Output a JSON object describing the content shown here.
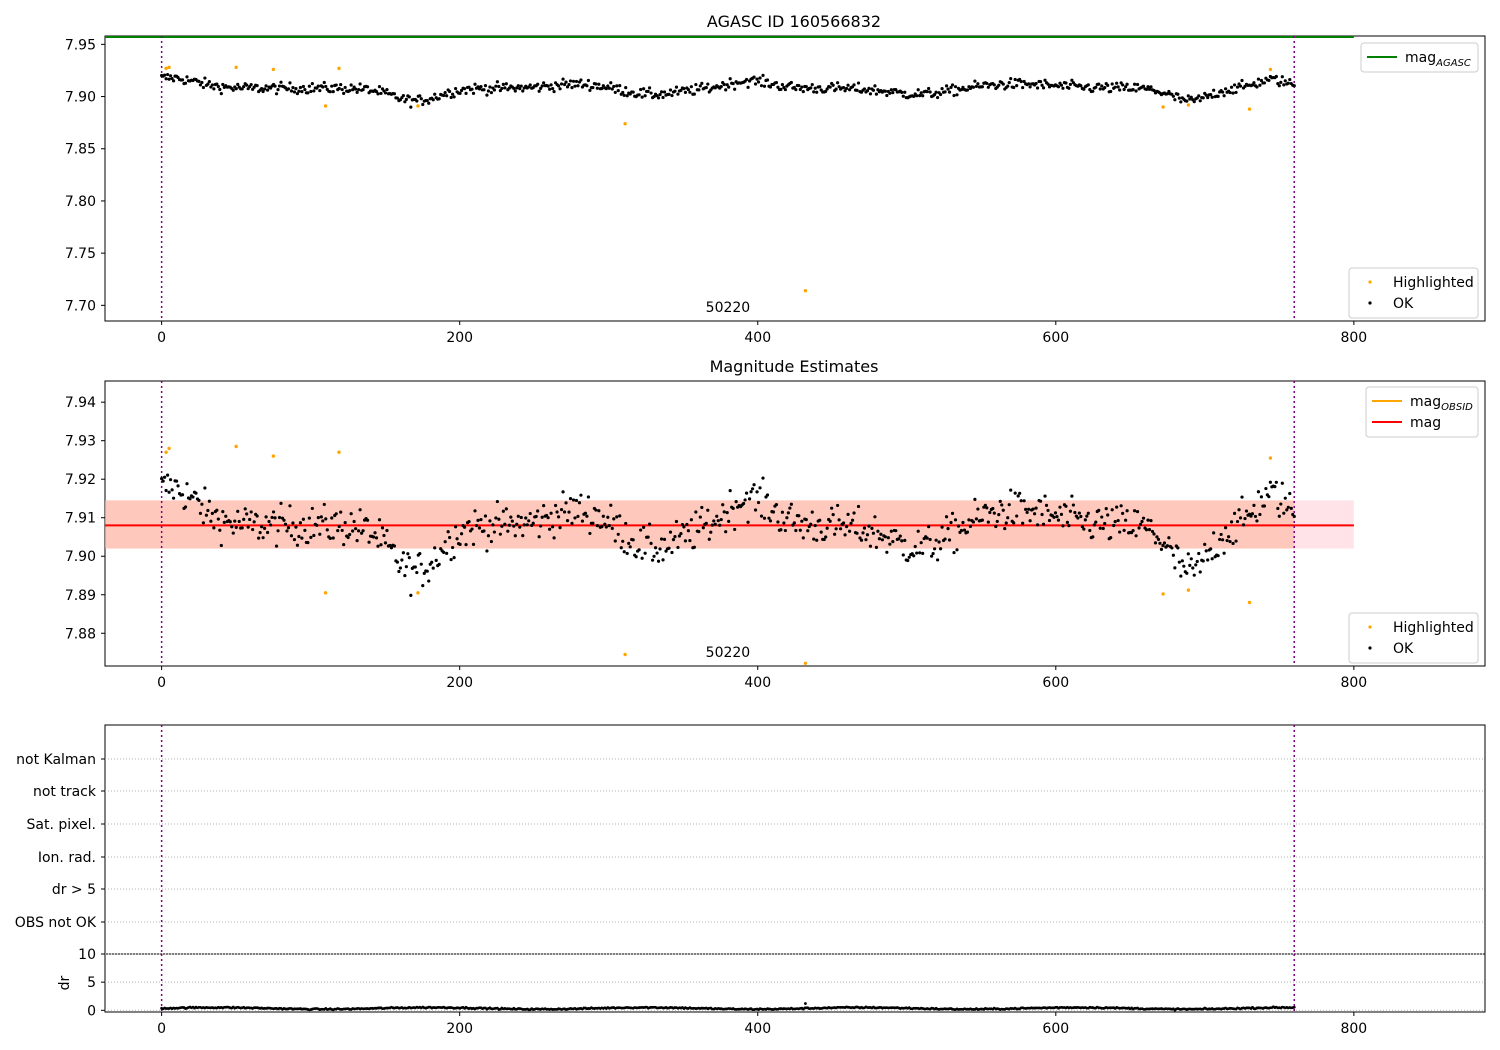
{
  "chart_data": [
    {
      "type": "scatter",
      "title": "AGASC ID 160566832",
      "xlabel": "",
      "ylabel": "",
      "xlim": [
        -38,
        888
      ],
      "ylim": [
        7.685,
        7.958
      ],
      "xticks": [
        0,
        200,
        400,
        600,
        800
      ],
      "yticks": [
        7.7,
        7.75,
        7.8,
        7.85,
        7.9,
        7.95
      ],
      "ytick_labels": [
        "7.70",
        "7.75",
        "7.80",
        "7.85",
        "7.90",
        "7.95"
      ],
      "grid": false,
      "mag_agasc": 7.957,
      "mag_agasc_xrange": [
        -38,
        800
      ],
      "obsid_boundaries": [
        0,
        760
      ],
      "obsid_label": {
        "text": "50220",
        "x": 380
      },
      "ok_series": {
        "name": "OK",
        "color": "#000000",
        "x_range": [
          0,
          760
        ],
        "n": 760,
        "mean": 7.908,
        "noise": 0.0025
      },
      "highlighted": {
        "name": "Highlighted",
        "color": "#ffa500",
        "x": [
          3,
          5,
          50,
          75,
          110,
          119,
          172,
          311,
          432,
          672,
          689,
          730,
          744
        ],
        "y": [
          7.927,
          7.928,
          7.928,
          7.926,
          7.891,
          7.927,
          7.891,
          7.874,
          7.714,
          7.89,
          7.892,
          7.888,
          7.926
        ]
      },
      "legends": [
        {
          "position": "top-right",
          "entries": [
            {
              "label": "mag",
              "subscript": "AGASC",
              "kind": "line",
              "color": "#008000"
            }
          ]
        },
        {
          "position": "bottom-right",
          "entries": [
            {
              "label": "Highlighted",
              "kind": "dot",
              "color": "#ffa500"
            },
            {
              "label": "OK",
              "kind": "dot",
              "color": "#000000"
            }
          ]
        }
      ]
    },
    {
      "type": "scatter",
      "title": "Magnitude Estimates",
      "xlabel": "",
      "ylabel": "",
      "xlim": [
        -38,
        888
      ],
      "ylim": [
        7.8715,
        7.9455
      ],
      "xticks": [
        0,
        200,
        400,
        600,
        800
      ],
      "yticks": [
        7.88,
        7.89,
        7.9,
        7.91,
        7.92,
        7.93,
        7.94
      ],
      "ytick_labels": [
        "7.88",
        "7.89",
        "7.90",
        "7.91",
        "7.92",
        "7.93",
        "7.94"
      ],
      "grid": false,
      "mag": 7.908,
      "mag_band_outer": {
        "y": [
          7.902,
          7.9145
        ],
        "x": [
          -38,
          800
        ],
        "color": "#ffc0cb"
      },
      "mag_band_inner": {
        "y": [
          7.902,
          7.9145
        ],
        "x": [
          -38,
          760
        ],
        "color": "#ffa07a"
      },
      "obsid_boundaries": [
        0,
        760
      ],
      "obsid_label": {
        "text": "50220",
        "x": 380
      },
      "highlighted": {
        "name": "Highlighted",
        "color": "#ffa500",
        "x": [
          3,
          5,
          50,
          75,
          110,
          119,
          172,
          311,
          432,
          672,
          689,
          730,
          744
        ],
        "y": [
          7.927,
          7.928,
          7.9285,
          7.926,
          7.8905,
          7.927,
          7.8905,
          7.8745,
          7.8722,
          7.8902,
          7.8912,
          7.888,
          7.9255
        ]
      },
      "legends": [
        {
          "position": "top-right",
          "entries": [
            {
              "label": "mag",
              "subscript": "OBSID",
              "kind": "line",
              "color": "#ffa500"
            },
            {
              "label": "mag",
              "kind": "line",
              "color": "#ff0000"
            }
          ]
        },
        {
          "position": "bottom-right",
          "entries": [
            {
              "label": "Highlighted",
              "kind": "dot",
              "color": "#ffa500"
            },
            {
              "label": "OK",
              "kind": "dot",
              "color": "#000000"
            }
          ]
        }
      ]
    },
    {
      "type": "table",
      "title": "",
      "xlim": [
        -38,
        888
      ],
      "categories": [
        "not Kalman",
        "not track",
        "Sat. pixel.",
        "Ion. rad.",
        "dr > 5",
        "OBS not OK"
      ],
      "grid": true,
      "obsid_boundaries": [
        0,
        760
      ]
    },
    {
      "type": "scatter",
      "title": "",
      "xlabel": "",
      "ylabel": "dr",
      "xlim": [
        -38,
        888
      ],
      "ylim": [
        -0.3,
        10.0
      ],
      "xticks": [
        0,
        200,
        400,
        600,
        800
      ],
      "yticks": [
        0,
        5,
        10
      ],
      "ytick_labels": [
        "0",
        "5",
        "10"
      ],
      "grid": true,
      "obsid_boundaries": [
        0,
        760
      ],
      "ok_series": {
        "name": "OK",
        "color": "#000000",
        "x_range": [
          0,
          760
        ],
        "n": 760,
        "mean": 0.35,
        "noise": 0.12
      },
      "outliers": {
        "x": [
          432
        ],
        "y": [
          1.2
        ]
      }
    }
  ]
}
